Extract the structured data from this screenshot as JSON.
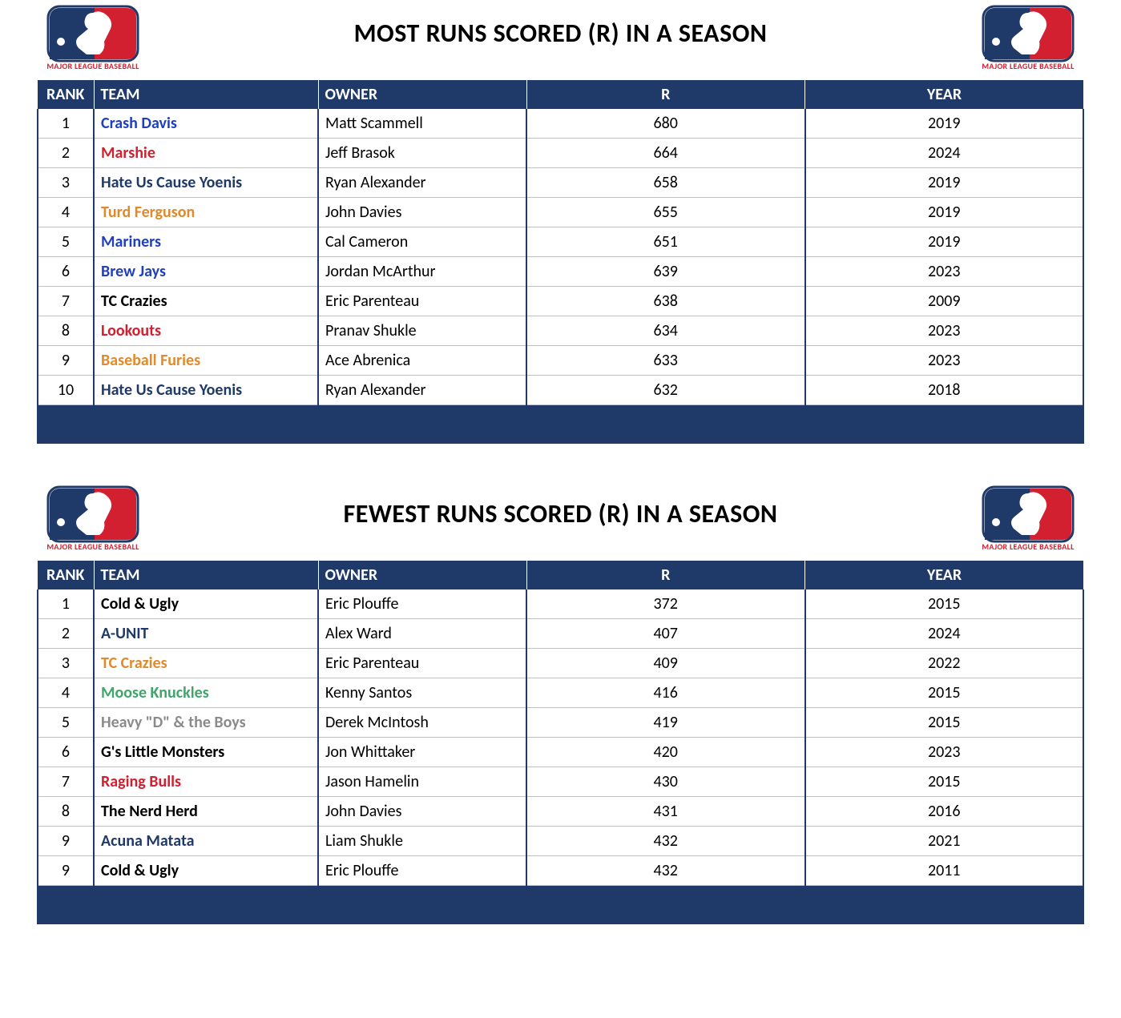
{
  "logo": {
    "caption": "MAJOR LEAGUE BASEBALL",
    "navy": "#1f3a68",
    "red": "#d22030",
    "white": "#ffffff"
  },
  "columns": {
    "rank": "RANK",
    "team": "TEAM",
    "owner": "OWNER",
    "stat": "R",
    "year": "YEAR"
  },
  "team_colors": {
    "blue": "#1f3fbf",
    "red": "#d22030",
    "navy": "#1f3a68",
    "orange": "#e08a2c",
    "black": "#000000",
    "green": "#3fa66a",
    "gray": "#8a8a8a"
  },
  "sections": [
    {
      "title": "MOST RUNS SCORED (R) IN A SEASON",
      "rows": [
        {
          "rank": "1",
          "team": "Crash Davis",
          "team_color": "blue",
          "owner": "Matt Scammell",
          "stat": "680",
          "year": "2019"
        },
        {
          "rank": "2",
          "team": "Marshie",
          "team_color": "red",
          "owner": "Jeff Brasok",
          "stat": "664",
          "year": "2024"
        },
        {
          "rank": "3",
          "team": "Hate Us Cause Yoenis",
          "team_color": "navy",
          "owner": "Ryan Alexander",
          "stat": "658",
          "year": "2019"
        },
        {
          "rank": "4",
          "team": "Turd Ferguson",
          "team_color": "orange",
          "owner": "John Davies",
          "stat": "655",
          "year": "2019"
        },
        {
          "rank": "5",
          "team": "Mariners",
          "team_color": "blue",
          "owner": "Cal Cameron",
          "stat": "651",
          "year": "2019"
        },
        {
          "rank": "6",
          "team": "Brew Jays",
          "team_color": "blue",
          "owner": "Jordan McArthur",
          "stat": "639",
          "year": "2023"
        },
        {
          "rank": "7",
          "team": "TC Crazies",
          "team_color": "black",
          "owner": "Eric Parenteau",
          "stat": "638",
          "year": "2009"
        },
        {
          "rank": "8",
          "team": "Lookouts",
          "team_color": "red",
          "owner": "Pranav Shukle",
          "stat": "634",
          "year": "2023"
        },
        {
          "rank": "9",
          "team": "Baseball Furies",
          "team_color": "orange",
          "owner": "Ace Abrenica",
          "stat": "633",
          "year": "2023"
        },
        {
          "rank": "10",
          "team": "Hate Us Cause Yoenis",
          "team_color": "navy",
          "owner": "Ryan Alexander",
          "stat": "632",
          "year": "2018"
        }
      ]
    },
    {
      "title": "FEWEST RUNS SCORED (R) IN A SEASON",
      "rows": [
        {
          "rank": "1",
          "team": "Cold & Ugly",
          "team_color": "black",
          "owner": "Eric Plouffe",
          "stat": "372",
          "year": "2015"
        },
        {
          "rank": "2",
          "team": "A-UNIT",
          "team_color": "navy",
          "owner": "Alex Ward",
          "stat": "407",
          "year": "2024"
        },
        {
          "rank": "3",
          "team": "TC Crazies",
          "team_color": "orange",
          "owner": "Eric Parenteau",
          "stat": "409",
          "year": "2022"
        },
        {
          "rank": "4",
          "team": "Moose Knuckles",
          "team_color": "green",
          "owner": "Kenny Santos",
          "stat": "416",
          "year": "2015"
        },
        {
          "rank": "5",
          "team": "Heavy \"D\" & the Boys",
          "team_color": "gray",
          "owner": "Derek McIntosh",
          "stat": "419",
          "year": "2015"
        },
        {
          "rank": "6",
          "team": "G's Little Monsters",
          "team_color": "black",
          "owner": "Jon Whittaker",
          "stat": "420",
          "year": "2023"
        },
        {
          "rank": "7",
          "team": "Raging Bulls",
          "team_color": "red",
          "owner": "Jason Hamelin",
          "stat": "430",
          "year": "2015"
        },
        {
          "rank": "8",
          "team": "The Nerd Herd",
          "team_color": "black",
          "owner": "John Davies",
          "stat": "431",
          "year": "2016"
        },
        {
          "rank": "9",
          "team": "Acuna Matata",
          "team_color": "navy",
          "owner": "Liam Shukle",
          "stat": "432",
          "year": "2021"
        },
        {
          "rank": "9",
          "team": "Cold & Ugly",
          "team_color": "black",
          "owner": "Eric Plouffe",
          "stat": "432",
          "year": "2011"
        }
      ]
    }
  ]
}
